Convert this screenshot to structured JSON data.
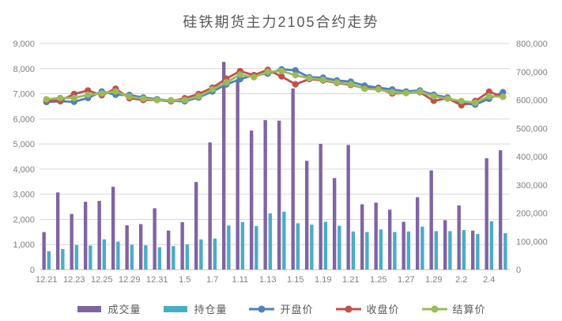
{
  "chart_data": {
    "type": "combo-bar-line",
    "title": "硅铁期货主力2105合约走势",
    "categories": [
      "12.21",
      "12.22",
      "12.23",
      "12.24",
      "12.25",
      "12.28",
      "12.29",
      "12.30",
      "12.31",
      "1.4",
      "1.5",
      "1.6",
      "1.7",
      "1.8",
      "1.11",
      "1.12",
      "1.13",
      "1.14",
      "1.15",
      "1.18",
      "1.19",
      "1.20",
      "1.21",
      "1.22",
      "1.25",
      "1.26",
      "1.27",
      "1.28",
      "1.29",
      "2.1",
      "2.2",
      "2.3",
      "2.4",
      "2.5"
    ],
    "x_tick_labels_shown": [
      "12.21",
      "12.23",
      "12.25",
      "12.29",
      "12.31",
      "1.5",
      "1.7",
      "1.11",
      "1.13",
      "1.15",
      "1.19",
      "1.21",
      "1.25",
      "1.27",
      "1.29",
      "2.2",
      "2.4"
    ],
    "x_label_every": 2,
    "left_axis": {
      "min": 0,
      "max": 9000,
      "step": 1000,
      "tick_labels": [
        "0",
        "1,000",
        "2,000",
        "3,000",
        "4,000",
        "5,000",
        "6,000",
        "7,000",
        "8,000",
        "9,000"
      ]
    },
    "right_axis": {
      "min": 0,
      "max": 800000,
      "step": 100000,
      "tick_labels": [
        "0",
        "100,000",
        "200,000",
        "300,000",
        "400,000",
        "500,000",
        "600,000",
        "700,000",
        "800,000"
      ]
    },
    "grid": true,
    "legend_position": "bottom",
    "series": [
      {
        "name": "成交量",
        "type": "bar",
        "axis": "right",
        "color": "#8064A2",
        "values": [
          133000,
          273000,
          197000,
          240000,
          243000,
          293000,
          157000,
          161000,
          217000,
          138000,
          168000,
          310000,
          450000,
          735000,
          674000,
          492000,
          529000,
          527000,
          641000,
          385000,
          445000,
          324000,
          441000,
          231000,
          237000,
          212000,
          169000,
          256000,
          351000,
          175000,
          227000,
          138000,
          394000,
          422000
        ]
      },
      {
        "name": "持仓量",
        "type": "bar",
        "axis": "right",
        "color": "#4BACC6",
        "values": [
          65000,
          73000,
          87000,
          85000,
          107000,
          99000,
          88000,
          86000,
          79000,
          83000,
          89000,
          107000,
          110000,
          156000,
          168000,
          154000,
          199000,
          205000,
          164000,
          159000,
          169000,
          155000,
          135000,
          133000,
          142000,
          133000,
          135000,
          152000,
          136000,
          136000,
          140000,
          126000,
          171000,
          129000
        ]
      },
      {
        "name": "开盘价",
        "type": "line",
        "axis": "left",
        "color": "#4F81BD",
        "values": [
          6670,
          6700,
          6680,
          6830,
          7090,
          6960,
          6950,
          6850,
          6780,
          6720,
          6700,
          6850,
          7090,
          7370,
          7580,
          7740,
          7800,
          7970,
          7930,
          7660,
          7640,
          7530,
          7480,
          7320,
          7240,
          7170,
          7090,
          7130,
          6960,
          6850,
          6610,
          6570,
          6800,
          7060
        ]
      },
      {
        "name": "收盘价",
        "type": "line",
        "axis": "left",
        "color": "#C0504D",
        "values": [
          6730,
          6720,
          6990,
          7130,
          6940,
          7200,
          6820,
          6750,
          6750,
          6700,
          6820,
          6990,
          7240,
          7600,
          7900,
          7740,
          7950,
          7690,
          7375,
          7585,
          7530,
          7430,
          7350,
          7220,
          7200,
          7010,
          7030,
          7060,
          6720,
          6820,
          6540,
          6710,
          7080,
          6880
        ]
      },
      {
        "name": "结算价",
        "type": "line",
        "axis": "left",
        "color": "#9BBB59",
        "values": [
          6780,
          6830,
          6830,
          6960,
          7010,
          7090,
          6880,
          6800,
          6750,
          6740,
          6750,
          6900,
          7170,
          7450,
          7760,
          7660,
          7870,
          7900,
          7740,
          7615,
          7555,
          7450,
          7380,
          7200,
          7170,
          7060,
          7030,
          7080,
          6900,
          6800,
          6710,
          6640,
          6900,
          6880
        ]
      }
    ]
  },
  "colors": {
    "background": "#ffffff",
    "gridline": "#D9D9D9",
    "axis_line": "#BFBFBF",
    "tick_text": "#808080",
    "title_text": "#595959",
    "legend_text": "#595959"
  }
}
